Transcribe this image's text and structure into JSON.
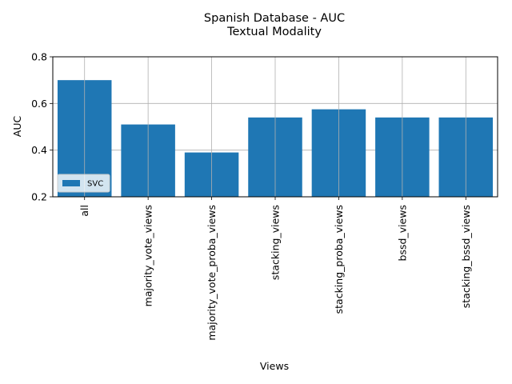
{
  "chart_data": {
    "type": "bar",
    "title": "Spanish Database - AUC",
    "subtitle": "Textual Modality",
    "xlabel": "Views",
    "ylabel": "AUC",
    "ylim": [
      0.2,
      0.8
    ],
    "yticks": [
      "0.2",
      "0.4",
      "0.6",
      "0.8"
    ],
    "categories": [
      "all",
      "majority_vote_views",
      "majority_vote_proba_views",
      "stacking_views",
      "stacking_proba_views",
      "bssd_views",
      "stacking_bssd_views"
    ],
    "series": [
      {
        "name": "SVC",
        "color": "#1f77b4",
        "values": [
          0.7,
          0.51,
          0.39,
          0.54,
          0.575,
          0.54,
          0.54
        ]
      }
    ],
    "grid": true,
    "legend_position": "lower-left"
  }
}
